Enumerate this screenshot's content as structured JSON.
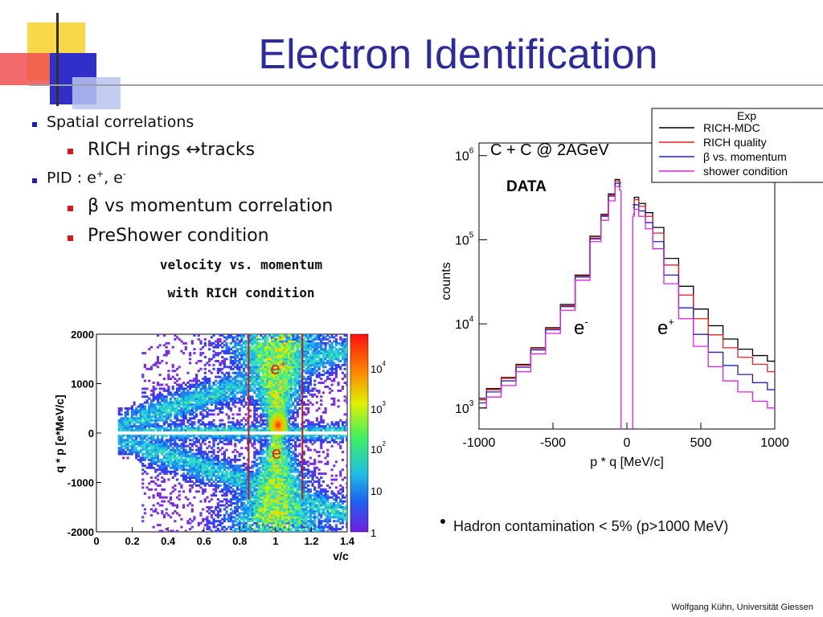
{
  "slide": {
    "title": "Electron Identification",
    "footer": "Wolfgang Kühn, Universität Giessen"
  },
  "bullets": {
    "spatial": "Spatial correlations",
    "rich": "RICH rings  ↔tracks",
    "pid_prefix": "PID :  e",
    "pid_plus": "+",
    "pid_mid": ", e",
    "pid_minus": "-",
    "beta": "β vs momentum correlation",
    "preshower": "PreShower condition",
    "caption1": "velocity vs. momentum",
    "caption2": "with RICH condition",
    "hadron": "Hadron contamination < 5% (p>1000 MeV)"
  },
  "colors": {
    "title": "#2b2b9e",
    "black_series": "#000000",
    "red_series": "#e02020",
    "blue_series": "#2020c0",
    "magenta_series": "#e020e0",
    "cut_lines": "#c01818"
  },
  "chart_data": [
    {
      "type": "heatmap",
      "title": "",
      "xlabel": "v/c",
      "ylabel": "q * p [e*MeV/c]",
      "xlim": [
        0,
        1.4
      ],
      "ylim": [
        -2000,
        2000
      ],
      "x_ticks": [
        "0",
        "0.2",
        "0.4",
        "0.6",
        "0.8",
        "1",
        "1.2",
        "1.4"
      ],
      "y_ticks": [
        "-2000",
        "-1000",
        "0",
        "1000",
        "2000"
      ],
      "colorbar_ticks": [
        {
          "base": "10",
          "exp": "4"
        },
        {
          "base": "10",
          "exp": "3"
        },
        {
          "base": "10",
          "exp": "2"
        },
        {
          "base": "10",
          "exp": ""
        },
        {
          "base": "1",
          "exp": ""
        }
      ],
      "annotations": {
        "e_plus": "e",
        "e_plus_sup": "+",
        "e_minus": "e",
        "e_minus_sup": "-"
      },
      "cut_lines_v_over_c": [
        0.85,
        1.15
      ]
    },
    {
      "type": "line",
      "title": "C + C @ 2AGeV",
      "data_label": "DATA",
      "xlabel": "p * q [MeV/c]",
      "ylabel": "counts",
      "xlim": [
        -1000,
        1000
      ],
      "ylim": [
        1000,
        1000000
      ],
      "y_scale": "log",
      "x_ticks": [
        "-1000",
        "-500",
        "0",
        "500",
        "1000"
      ],
      "y_ticks": [
        {
          "base": "10",
          "exp": "3"
        },
        {
          "base": "10",
          "exp": "4"
        },
        {
          "base": "10",
          "exp": "5"
        },
        {
          "base": "10",
          "exp": "6"
        }
      ],
      "annotations": {
        "e_minus": "e",
        "e_minus_sup": "-",
        "e_plus": "e",
        "e_plus_sup": "+"
      },
      "legend_title": "Exp",
      "legend_position": "top-right",
      "x": [
        -1000,
        -900,
        -800,
        -700,
        -600,
        -500,
        -400,
        -300,
        -200,
        -150,
        -100,
        -60,
        -40,
        40,
        60,
        100,
        150,
        200,
        300,
        400,
        500,
        600,
        700,
        800,
        900,
        1000
      ],
      "series": [
        {
          "name": "RICH-MDC",
          "color": "#000000",
          "values": [
            1300,
            1700,
            2300,
            3300,
            5200,
            9000,
            17000,
            38000,
            110000,
            200000,
            350000,
            520000,
            480000,
            260000,
            320000,
            270000,
            210000,
            140000,
            60000,
            28000,
            15000,
            9500,
            6600,
            5000,
            4200,
            3600
          ]
        },
        {
          "name": "RICH quality",
          "color": "#e02020",
          "values": [
            1250,
            1650,
            2250,
            3200,
            5100,
            8800,
            16500,
            37000,
            105000,
            195000,
            340000,
            500000,
            460000,
            240000,
            300000,
            250000,
            190000,
            120000,
            50000,
            22000,
            11500,
            7400,
            5200,
            4000,
            3300,
            2700
          ]
        },
        {
          "name": "β vs. momentum",
          "color": "#2020c0",
          "values": [
            1150,
            1550,
            2100,
            3050,
            4900,
            8500,
            16000,
            36000,
            102000,
            190000,
            330000,
            470000,
            430000,
            200000,
            260000,
            220000,
            160000,
            95000,
            38000,
            15500,
            7500,
            4600,
            3200,
            2500,
            2000,
            1650
          ]
        },
        {
          "name": "shower condition",
          "color": "#e020e0",
          "values": [
            1000,
            1350,
            1850,
            2700,
            4400,
            7700,
            14500,
            33000,
            95000,
            170000,
            290000,
            430000,
            390000,
            190000,
            230000,
            190000,
            135000,
            78000,
            30000,
            11500,
            5400,
            3100,
            2100,
            1550,
            1200,
            1000
          ]
        }
      ]
    }
  ]
}
